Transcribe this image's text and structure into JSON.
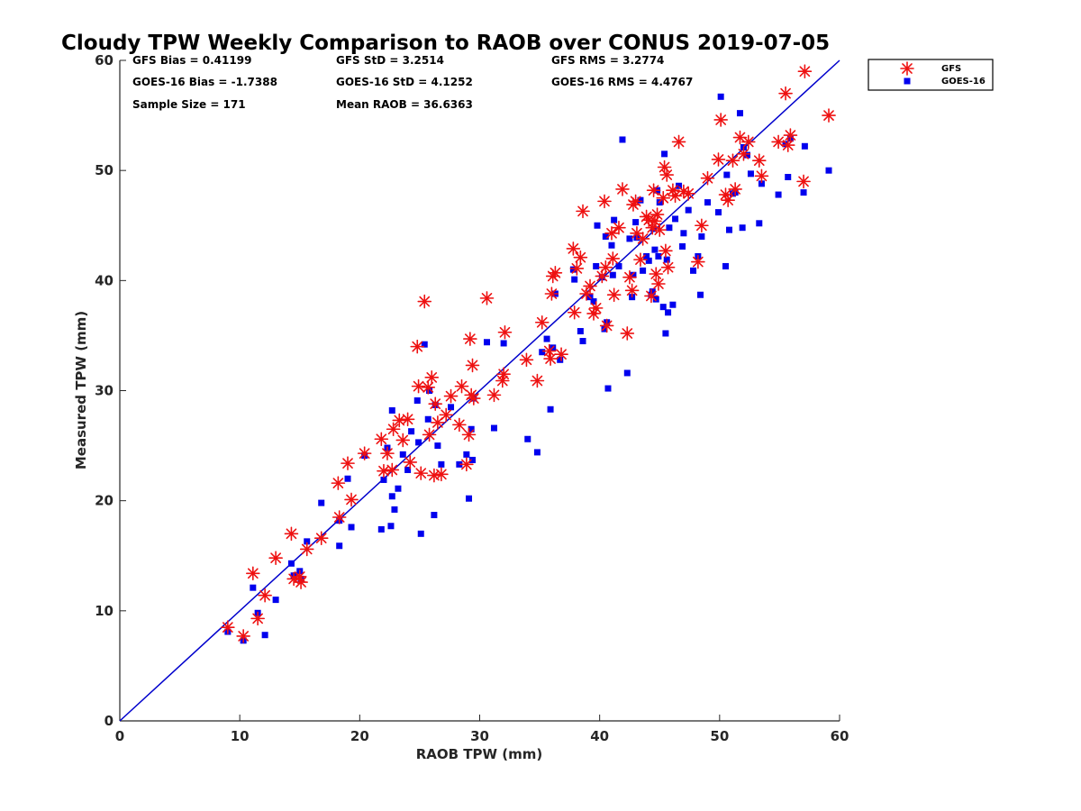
{
  "chart_data": {
    "type": "scatter",
    "title": "Cloudy TPW Weekly Comparison to RAOB over CONUS 2019-07-05",
    "xlabel": "RAOB TPW (mm)",
    "ylabel": "Measured TPW (mm)",
    "xlim": [
      0,
      60
    ],
    "ylim": [
      0,
      60
    ],
    "xticks": [
      "0",
      "10",
      "20",
      "30",
      "40",
      "50",
      "60"
    ],
    "yticks": [
      "0",
      "10",
      "20",
      "30",
      "40",
      "50",
      "60"
    ],
    "grid": false,
    "legend_position": "outside-top-right",
    "stats": [
      "GFS Bias = 0.41199",
      "GFS StD = 3.2514",
      "GFS RMS = 3.2774",
      "GOES-16 Bias = -1.7388",
      "GOES-16 StD = 4.1252",
      "GOES-16 RMS = 4.4767",
      "Sample Size = 171",
      "Mean RAOB = 36.6363"
    ],
    "reference_line": {
      "x": [
        0,
        60
      ],
      "y": [
        0,
        60
      ],
      "color": "#0000cc"
    },
    "series": [
      {
        "name": "GFS",
        "marker": "asterisk",
        "color": "#ee1111",
        "points": [
          [
            9,
            8.5
          ],
          [
            10.3,
            7.7
          ],
          [
            11.1,
            13.4
          ],
          [
            11.5,
            9.3
          ],
          [
            12.1,
            11.4
          ],
          [
            13,
            14.8
          ],
          [
            14.3,
            17
          ],
          [
            14.5,
            12.9
          ],
          [
            15,
            13.1
          ],
          [
            15.1,
            12.6
          ],
          [
            15.6,
            15.6
          ],
          [
            16.8,
            16.6
          ],
          [
            18.2,
            21.6
          ],
          [
            18.3,
            18.5
          ],
          [
            19,
            23.4
          ],
          [
            19.3,
            20.1
          ],
          [
            20.4,
            24.3
          ],
          [
            21.8,
            25.6
          ],
          [
            22,
            22.7
          ],
          [
            22.3,
            24.3
          ],
          [
            22.8,
            26.5
          ],
          [
            22.7,
            22.8
          ],
          [
            23.3,
            27.3
          ],
          [
            23.6,
            25.5
          ],
          [
            24,
            27.4
          ],
          [
            24.2,
            23.5
          ],
          [
            24.8,
            34
          ],
          [
            24.9,
            30.4
          ],
          [
            25.1,
            22.5
          ],
          [
            25.4,
            38.1
          ],
          [
            25.7,
            30.3
          ],
          [
            25.8,
            26
          ],
          [
            26,
            31.2
          ],
          [
            26.2,
            22.3
          ],
          [
            26.3,
            28.8
          ],
          [
            26.5,
            27.1
          ],
          [
            26.8,
            22.4
          ],
          [
            27.2,
            27.8
          ],
          [
            27.6,
            29.5
          ],
          [
            28.3,
            26.9
          ],
          [
            28.5,
            30.4
          ],
          [
            28.9,
            23.3
          ],
          [
            29.1,
            26
          ],
          [
            29.2,
            34.7
          ],
          [
            29.3,
            29.6
          ],
          [
            29.4,
            32.3
          ],
          [
            29.5,
            29.3
          ],
          [
            30.6,
            38.4
          ],
          [
            31.2,
            29.6
          ],
          [
            31.9,
            30.9
          ],
          [
            32,
            31.5
          ],
          [
            32.1,
            35.3
          ],
          [
            33.9,
            32.8
          ],
          [
            34.8,
            30.9
          ],
          [
            35.2,
            36.2
          ],
          [
            35.8,
            33.6
          ],
          [
            35.9,
            32.9
          ],
          [
            36,
            38.8
          ],
          [
            36.1,
            40.4
          ],
          [
            36.3,
            40.7
          ],
          [
            36.8,
            33.3
          ],
          [
            37.8,
            42.9
          ],
          [
            37.9,
            37.1
          ],
          [
            38.1,
            41.1
          ],
          [
            38.4,
            42.1
          ],
          [
            38.6,
            46.3
          ],
          [
            38.9,
            38.8
          ],
          [
            39.2,
            39.5
          ],
          [
            39.5,
            37
          ],
          [
            39.7,
            37.5
          ],
          [
            40.2,
            40.4
          ],
          [
            40.4,
            47.2
          ],
          [
            40.5,
            41.2
          ],
          [
            40.6,
            35.9
          ],
          [
            41,
            44.3
          ],
          [
            41.1,
            42
          ],
          [
            41.2,
            38.7
          ],
          [
            41.6,
            44.8
          ],
          [
            41.9,
            48.3
          ],
          [
            42.3,
            35.2
          ],
          [
            42.5,
            40.3
          ],
          [
            42.7,
            39.1
          ],
          [
            42.8,
            46.9
          ],
          [
            43,
            47.2
          ],
          [
            43.1,
            44.3
          ],
          [
            43.4,
            41.9
          ],
          [
            43.6,
            43.8
          ],
          [
            43.9,
            45.8
          ],
          [
            44.1,
            45.5
          ],
          [
            44.3,
            38.6
          ],
          [
            44.4,
            44.8
          ],
          [
            44.5,
            48.2
          ],
          [
            44.6,
            45.4
          ],
          [
            44.7,
            40.6
          ],
          [
            44.8,
            46
          ],
          [
            44.9,
            39.7
          ],
          [
            45,
            44.6
          ],
          [
            45.3,
            47.5
          ],
          [
            45.4,
            50.3
          ],
          [
            45.5,
            42.7
          ],
          [
            45.6,
            49.6
          ],
          [
            45.7,
            41.2
          ],
          [
            46.1,
            48.2
          ],
          [
            46.3,
            47.7
          ],
          [
            46.6,
            52.6
          ],
          [
            47,
            48.1
          ],
          [
            47.4,
            47.9
          ],
          [
            48.2,
            41.7
          ],
          [
            48.5,
            45
          ],
          [
            49,
            49.3
          ],
          [
            49.9,
            51
          ],
          [
            50.1,
            54.6
          ],
          [
            50.5,
            47.8
          ],
          [
            50.7,
            47.3
          ],
          [
            51.1,
            50.9
          ],
          [
            51.3,
            48.3
          ],
          [
            51.7,
            53
          ],
          [
            52,
            51.5
          ],
          [
            52.4,
            52.6
          ],
          [
            53.3,
            50.9
          ],
          [
            53.5,
            49.5
          ],
          [
            54.9,
            52.6
          ],
          [
            55.5,
            57
          ],
          [
            55.7,
            52.3
          ],
          [
            55.9,
            53.2
          ],
          [
            57,
            49
          ],
          [
            57.1,
            59
          ],
          [
            59.1,
            55
          ]
        ]
      },
      {
        "name": "GOES-16",
        "marker": "square",
        "color": "#0000ee",
        "points": [
          [
            9,
            8.1
          ],
          [
            10.3,
            7.3
          ],
          [
            11.1,
            12.1
          ],
          [
            11.5,
            9.8
          ],
          [
            12.1,
            7.8
          ],
          [
            13,
            11
          ],
          [
            14.3,
            14.3
          ],
          [
            14.5,
            13.2
          ],
          [
            15,
            13.6
          ],
          [
            15.1,
            12.9
          ],
          [
            15.6,
            16.3
          ],
          [
            16.8,
            19.8
          ],
          [
            18.3,
            15.9
          ],
          [
            18.3,
            18.2
          ],
          [
            19,
            22
          ],
          [
            19.3,
            17.6
          ],
          [
            20.4,
            24.1
          ],
          [
            21.8,
            17.4
          ],
          [
            22,
            21.9
          ],
          [
            22.3,
            24.8
          ],
          [
            22.6,
            17.7
          ],
          [
            22.7,
            20.4
          ],
          [
            22.9,
            19.2
          ],
          [
            22.7,
            28.2
          ],
          [
            23.2,
            21.1
          ],
          [
            23.6,
            24.2
          ],
          [
            24,
            22.8
          ],
          [
            24.3,
            26.3
          ],
          [
            24.8,
            29.1
          ],
          [
            24.9,
            25.3
          ],
          [
            25.1,
            17
          ],
          [
            25.4,
            34.2
          ],
          [
            25.7,
            27.4
          ],
          [
            25.8,
            30
          ],
          [
            26.2,
            18.7
          ],
          [
            26.3,
            28.7
          ],
          [
            26.5,
            25
          ],
          [
            26.8,
            23.3
          ],
          [
            27.6,
            28.5
          ],
          [
            28.3,
            23.3
          ],
          [
            28.9,
            24.2
          ],
          [
            29.1,
            20.2
          ],
          [
            29.3,
            26.5
          ],
          [
            29.4,
            23.7
          ],
          [
            29.5,
            29.3
          ],
          [
            30.6,
            34.4
          ],
          [
            31.2,
            26.6
          ],
          [
            32,
            34.3
          ],
          [
            34,
            25.6
          ],
          [
            34.8,
            24.4
          ],
          [
            35.2,
            33.5
          ],
          [
            35.6,
            34.7
          ],
          [
            35.9,
            28.3
          ],
          [
            36.1,
            33.9
          ],
          [
            36.3,
            38.8
          ],
          [
            36.7,
            32.8
          ],
          [
            37.8,
            41
          ],
          [
            37.9,
            40.1
          ],
          [
            38.4,
            35.4
          ],
          [
            38.6,
            34.5
          ],
          [
            39.2,
            38.5
          ],
          [
            39.5,
            38.1
          ],
          [
            39.7,
            41.3
          ],
          [
            39.8,
            45
          ],
          [
            40.2,
            40.3
          ],
          [
            40.4,
            35.6
          ],
          [
            40.5,
            44
          ],
          [
            40.6,
            36.2
          ],
          [
            40.7,
            30.2
          ],
          [
            41,
            43.2
          ],
          [
            41.1,
            40.5
          ],
          [
            41.2,
            45.5
          ],
          [
            41.6,
            41.3
          ],
          [
            41.9,
            52.8
          ],
          [
            42.3,
            31.6
          ],
          [
            42.5,
            43.8
          ],
          [
            42.7,
            38.5
          ],
          [
            42.8,
            40.5
          ],
          [
            43,
            45.3
          ],
          [
            43.1,
            43.9
          ],
          [
            43.4,
            47.3
          ],
          [
            43.6,
            40.9
          ],
          [
            43.9,
            42.2
          ],
          [
            44.1,
            41.8
          ],
          [
            44.3,
            38.7
          ],
          [
            44.4,
            39
          ],
          [
            44.5,
            44.7
          ],
          [
            44.6,
            42.8
          ],
          [
            44.7,
            38.3
          ],
          [
            44.8,
            48.2
          ],
          [
            44.9,
            42.2
          ],
          [
            45,
            47.1
          ],
          [
            45.3,
            37.6
          ],
          [
            45.4,
            51.5
          ],
          [
            45.5,
            35.2
          ],
          [
            45.6,
            41.9
          ],
          [
            45.7,
            37.1
          ],
          [
            45.8,
            44.8
          ],
          [
            46.1,
            37.8
          ],
          [
            46.3,
            45.6
          ],
          [
            46.6,
            48.6
          ],
          [
            46.9,
            43.1
          ],
          [
            47,
            44.3
          ],
          [
            47.4,
            46.4
          ],
          [
            47.8,
            40.9
          ],
          [
            48.2,
            42.2
          ],
          [
            48.4,
            38.7
          ],
          [
            48.5,
            44
          ],
          [
            49,
            47.1
          ],
          [
            49.9,
            46.2
          ],
          [
            50.1,
            56.7
          ],
          [
            50.5,
            41.3
          ],
          [
            50.6,
            49.6
          ],
          [
            50.8,
            44.6
          ],
          [
            51.1,
            47.9
          ],
          [
            51.3,
            48
          ],
          [
            51.7,
            55.2
          ],
          [
            51.9,
            44.8
          ],
          [
            52,
            52.1
          ],
          [
            52.3,
            51.4
          ],
          [
            52.6,
            49.7
          ],
          [
            53.3,
            45.2
          ],
          [
            53.5,
            48.8
          ],
          [
            54.9,
            47.8
          ],
          [
            55.5,
            52.4
          ],
          [
            55.7,
            49.4
          ],
          [
            55.9,
            52.9
          ],
          [
            57,
            48
          ],
          [
            57.1,
            52.2
          ],
          [
            59.1,
            50
          ]
        ]
      }
    ]
  }
}
